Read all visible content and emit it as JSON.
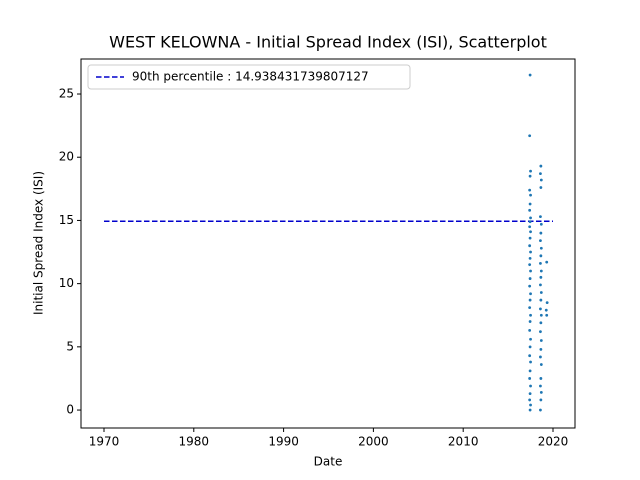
{
  "chart_data": {
    "type": "scatter",
    "title": "WEST KELOWNA - Initial Spread Index (ISI), Scatterplot",
    "xlabel": "Date",
    "ylabel": "Initial Spread Index (ISI)",
    "xlim": [
      1967.44,
      2022.45
    ],
    "ylim": [
      -1.42,
      27.77
    ],
    "xticks": [
      1970,
      1980,
      1990,
      2000,
      2010,
      2020
    ],
    "yticks": [
      0,
      5,
      10,
      15,
      20,
      25
    ],
    "legend": "upper left",
    "series": [
      {
        "name": "90th percentile : 14.938431739807127",
        "type": "line",
        "color": "#0000cc",
        "dashed": true,
        "x": [
          1970,
          2020
        ],
        "values": [
          14.938431739807127,
          14.938431739807127
        ]
      },
      {
        "type": "scatter",
        "color": "#1f77b4",
        "x": [
          2017.45,
          2017.4,
          2017.5,
          2017.45,
          2017.4,
          2017.5,
          2017.45,
          2017.4,
          2017.5,
          2017.45,
          2017.4,
          2017.5,
          2017.45,
          2017.4,
          2017.5,
          2017.45,
          2017.4,
          2017.5,
          2017.45,
          2017.4,
          2017.5,
          2017.45,
          2017.4,
          2017.5,
          2017.45,
          2017.4,
          2017.5,
          2017.45,
          2017.4,
          2017.5,
          2017.45,
          2017.4,
          2017.5,
          2017.45,
          2017.4,
          2017.5,
          2017.45,
          2018.65,
          2018.6,
          2018.7,
          2018.65,
          2018.6,
          2018.7,
          2018.65,
          2018.6,
          2018.7,
          2018.65,
          2018.6,
          2018.7,
          2018.65,
          2018.6,
          2018.7,
          2018.65,
          2018.6,
          2018.7,
          2018.65,
          2018.6,
          2018.7,
          2018.65,
          2018.6,
          2018.7,
          2018.65,
          2018.6,
          2018.7,
          2018.65,
          2018.6,
          2019.3,
          2019.35,
          2019.25,
          2019.3
        ],
        "values": [
          26.5,
          21.7,
          18.9,
          18.5,
          17.4,
          17.0,
          16.3,
          15.8,
          15.2,
          14.9,
          14.5,
          14.1,
          13.6,
          13.0,
          12.5,
          12.0,
          11.5,
          11.0,
          10.4,
          9.8,
          9.2,
          8.7,
          8.1,
          7.5,
          7.0,
          6.3,
          5.6,
          5.0,
          4.3,
          3.8,
          3.1,
          2.5,
          1.9,
          1.3,
          0.8,
          0.4,
          0.0,
          19.3,
          18.7,
          18.2,
          17.6,
          15.3,
          14.7,
          14.0,
          13.4,
          12.8,
          12.2,
          11.6,
          11.0,
          10.5,
          9.9,
          9.3,
          8.7,
          8.0,
          7.5,
          6.9,
          6.2,
          5.5,
          4.8,
          4.2,
          3.6,
          2.5,
          1.9,
          1.4,
          0.8,
          0.0,
          11.7,
          8.5,
          7.9,
          7.5
        ]
      }
    ]
  }
}
